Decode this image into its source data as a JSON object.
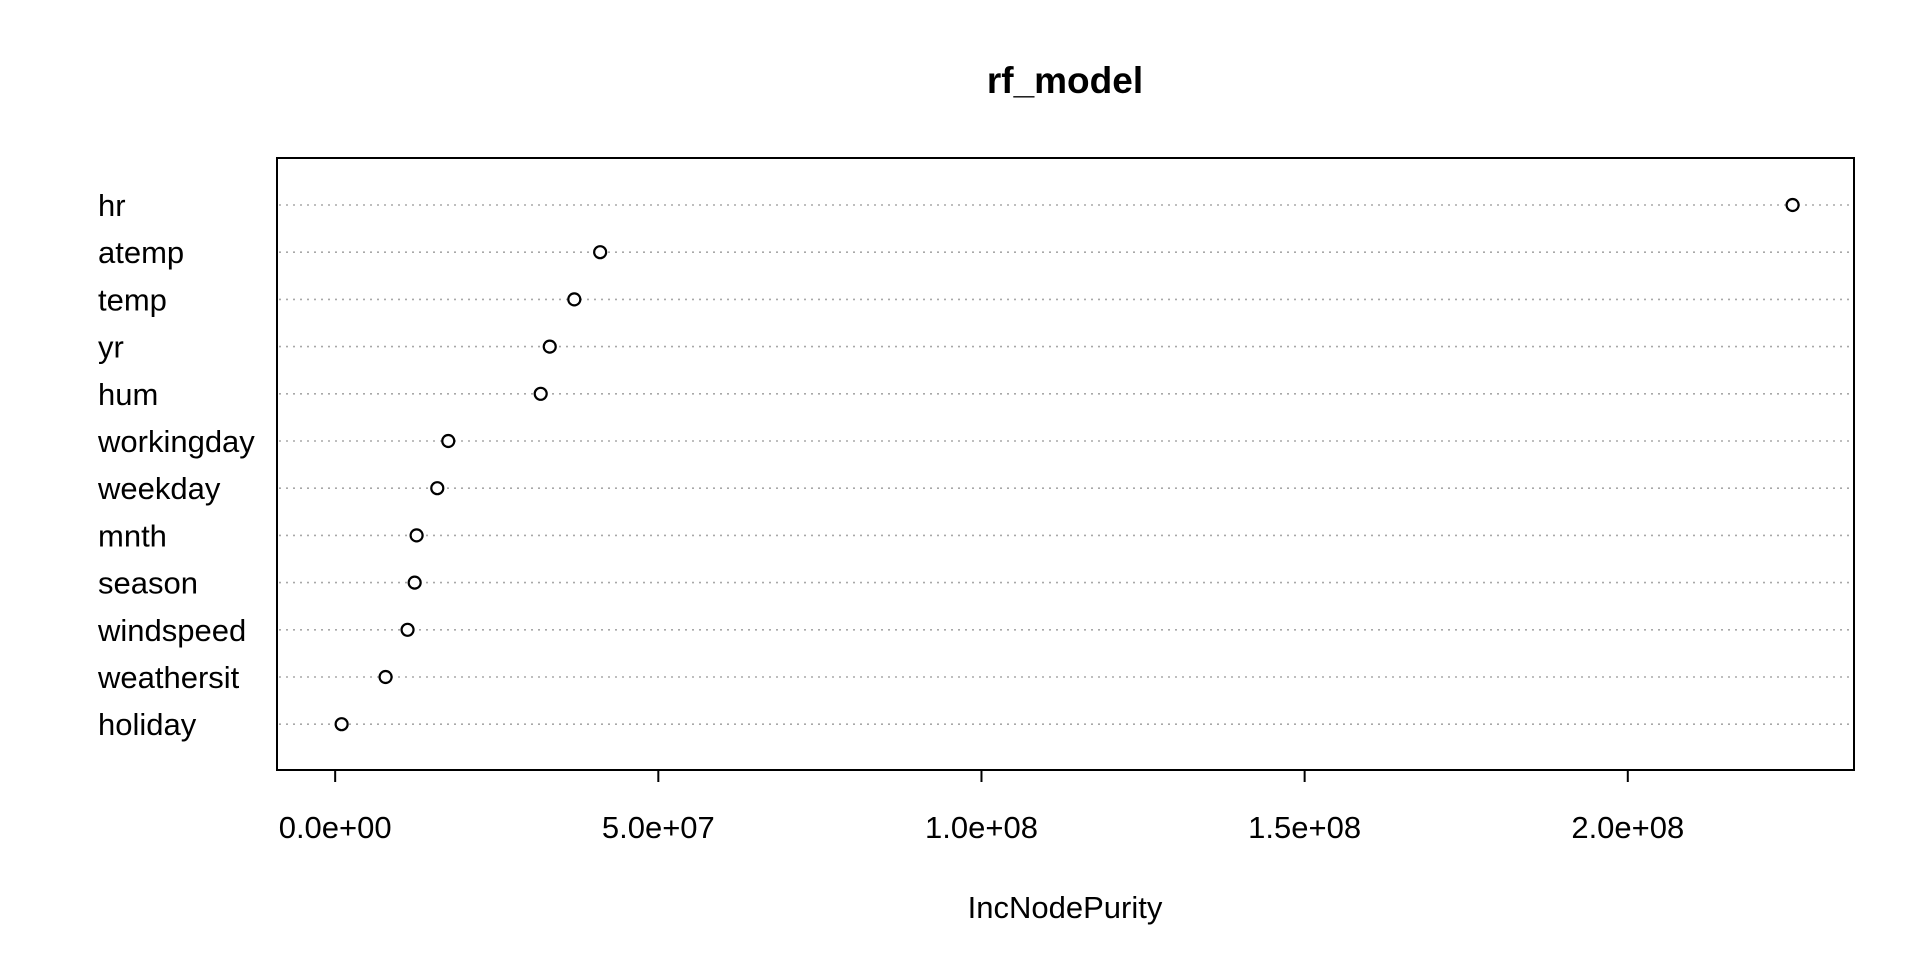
{
  "chart_data": {
    "type": "scatter",
    "subtype": "dotchart",
    "title": "rf_model",
    "xlabel": "IncNodePurity",
    "ylabel": "",
    "xlim": [
      -9000000,
      235000000
    ],
    "xticks": [
      0,
      50000000,
      100000000,
      150000000,
      200000000
    ],
    "xtick_labels": [
      "0.0e+00",
      "5.0e+07",
      "1.0e+08",
      "1.5e+08",
      "2.0e+08"
    ],
    "categories": [
      "hr",
      "atemp",
      "temp",
      "yr",
      "hum",
      "workingday",
      "weekday",
      "mnth",
      "season",
      "windspeed",
      "weathersit",
      "holiday"
    ],
    "values": [
      225500000,
      41000000,
      37000000,
      33200000,
      31800000,
      17500000,
      15800000,
      12600000,
      12300000,
      11200000,
      7800000,
      1000000
    ],
    "grid": "dotted horizontal guide lines",
    "legend": "none",
    "marker": "open circle",
    "colors": {
      "background": "#ffffff",
      "ink": "#000000",
      "guide": "#a8a8a8"
    }
  }
}
